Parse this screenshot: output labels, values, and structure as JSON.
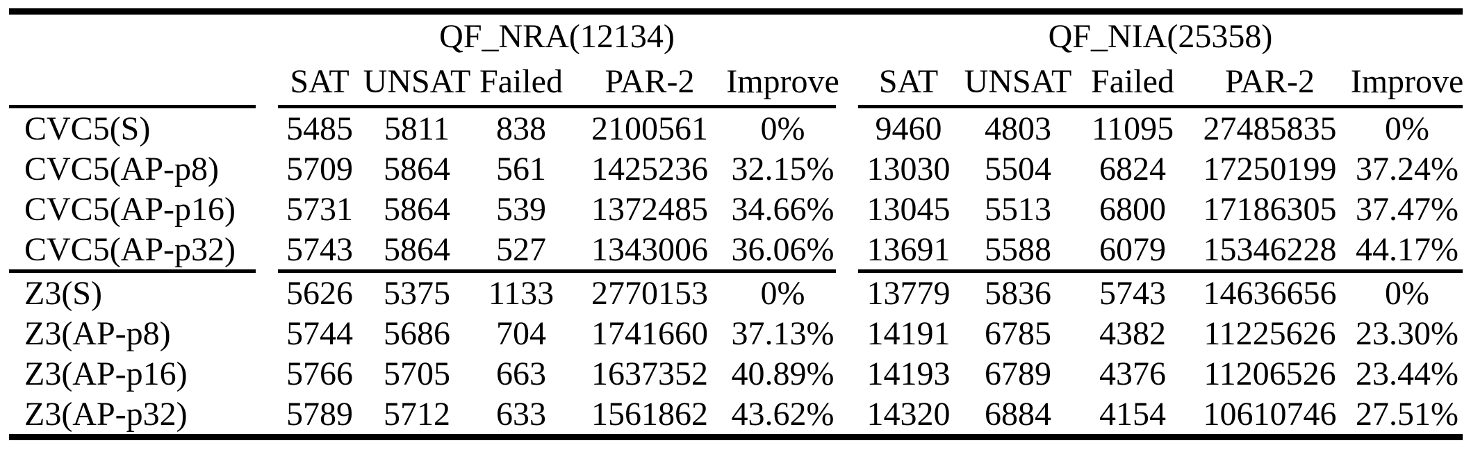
{
  "table": {
    "groups": [
      {
        "title": "QF_NRA(12134)"
      },
      {
        "title": "QF_NIA(25358)"
      }
    ],
    "columns": [
      "SAT",
      "UNSAT",
      "Failed",
      "PAR-2",
      "Improve"
    ],
    "rows": [
      {
        "label": "CVC5(S)",
        "nra": {
          "sat": "5485",
          "unsat": "5811",
          "failed": "838",
          "par2": "2100561",
          "improve": "0%"
        },
        "nia": {
          "sat": "9460",
          "unsat": "4803",
          "failed": "11095",
          "par2": "27485835",
          "improve": "0%"
        }
      },
      {
        "label": "CVC5(AP-p8)",
        "nra": {
          "sat": "5709",
          "unsat": "5864",
          "failed": "561",
          "par2": "1425236",
          "improve": "32.15%"
        },
        "nia": {
          "sat": "13030",
          "unsat": "5504",
          "failed": "6824",
          "par2": "17250199",
          "improve": "37.24%"
        }
      },
      {
        "label": "CVC5(AP-p16)",
        "nra": {
          "sat": "5731",
          "unsat": "5864",
          "failed": "539",
          "par2": "1372485",
          "improve": "34.66%"
        },
        "nia": {
          "sat": "13045",
          "unsat": "5513",
          "failed": "6800",
          "par2": "17186305",
          "improve": "37.47%"
        }
      },
      {
        "label": "CVC5(AP-p32)",
        "nra": {
          "sat": "5743",
          "unsat": "5864",
          "failed": "527",
          "par2": "1343006",
          "improve": "36.06%"
        },
        "nia": {
          "sat": "13691",
          "unsat": "5588",
          "failed": "6079",
          "par2": "15346228",
          "improve": "44.17%"
        }
      },
      {
        "label": "Z3(S)",
        "nra": {
          "sat": "5626",
          "unsat": "5375",
          "failed": "1133",
          "par2": "2770153",
          "improve": "0%"
        },
        "nia": {
          "sat": "13779",
          "unsat": "5836",
          "failed": "5743",
          "par2": "14636656",
          "improve": "0%"
        }
      },
      {
        "label": "Z3(AP-p8)",
        "nra": {
          "sat": "5744",
          "unsat": "5686",
          "failed": "704",
          "par2": "1741660",
          "improve": "37.13%"
        },
        "nia": {
          "sat": "14191",
          "unsat": "6785",
          "failed": "4382",
          "par2": "11225626",
          "improve": "23.30%"
        }
      },
      {
        "label": "Z3(AP-p16)",
        "nra": {
          "sat": "5766",
          "unsat": "5705",
          "failed": "663",
          "par2": "1637352",
          "improve": "40.89%"
        },
        "nia": {
          "sat": "14193",
          "unsat": "6789",
          "failed": "4376",
          "par2": "11206526",
          "improve": "23.44%"
        }
      },
      {
        "label": "Z3(AP-p32)",
        "nra": {
          "sat": "5789",
          "unsat": "5712",
          "failed": "633",
          "par2": "1561862",
          "improve": "43.62%"
        },
        "nia": {
          "sat": "14320",
          "unsat": "6884",
          "failed": "4154",
          "par2": "10610746",
          "improve": "27.51%"
        }
      }
    ],
    "colors": {
      "text": "#000000",
      "background": "#ffffff",
      "rule": "#000000"
    }
  }
}
